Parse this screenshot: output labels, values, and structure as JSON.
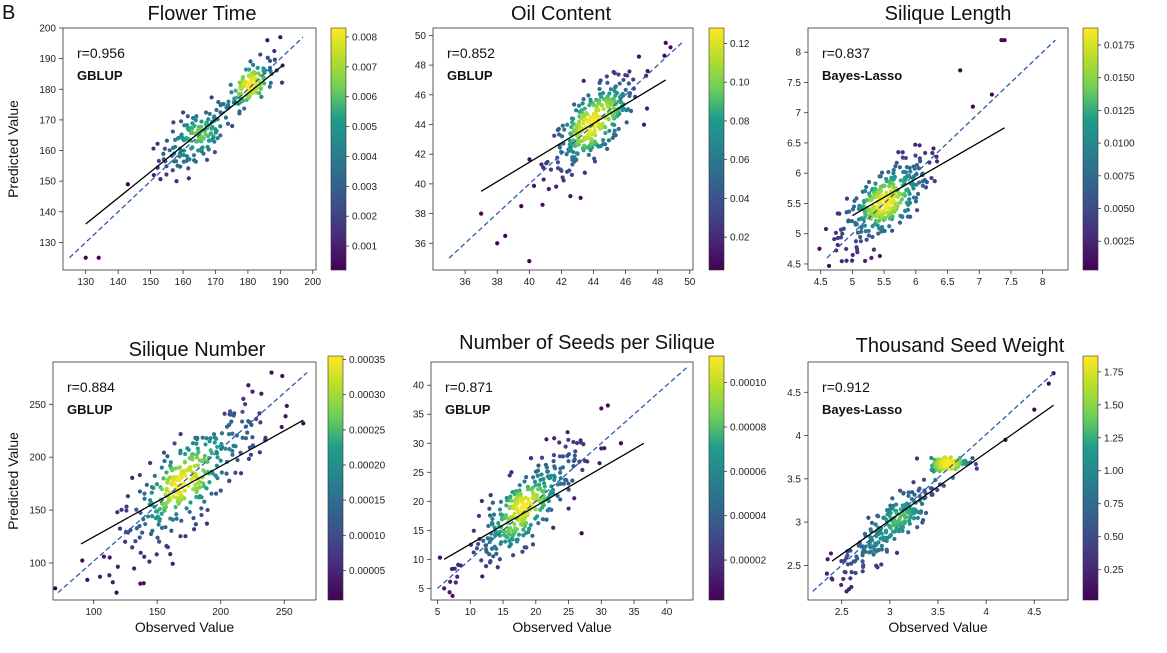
{
  "figure": {
    "panel_label": "B"
  },
  "colormap": [
    "#440154",
    "#482777",
    "#3f4a8a",
    "#31678e",
    "#26838f",
    "#1f9d8a",
    "#6cce5a",
    "#b6de2b",
    "#fee825"
  ],
  "fit_line_color": "#000000",
  "identity_line_color": "#2a5caa",
  "chart_data": [
    {
      "id": "flower-time",
      "type": "scatter",
      "title": "Flower Time",
      "xlabel": "",
      "ylabel": "Predicted Value",
      "r_label": "r=0.956",
      "model": "GBLUP",
      "xlim": [
        123,
        201
      ],
      "ylim": [
        121,
        200
      ],
      "xticks": [
        130,
        140,
        150,
        160,
        170,
        180,
        190,
        200
      ],
      "yticks": [
        130,
        140,
        150,
        160,
        170,
        180,
        190,
        200
      ],
      "identity_line": [
        [
          125,
          125
        ],
        [
          197,
          197
        ]
      ],
      "fit_line": [
        [
          130,
          136
        ],
        [
          191,
          188
        ]
      ],
      "clusters": [
        {
          "cx": 163.5,
          "cy": 163.5,
          "sx": 5.5,
          "sy": 5.5,
          "rho": 0.6,
          "n": 140
        },
        {
          "cx": 181,
          "cy": 182,
          "sx": 3.5,
          "sy": 4,
          "rho": 0.6,
          "n": 120
        }
      ],
      "outliers": [
        [
          130,
          125
        ],
        [
          134,
          125
        ],
        [
          143,
          149
        ],
        [
          151,
          152
        ],
        [
          190,
          197
        ],
        [
          186,
          196
        ],
        [
          174,
          174
        ],
        [
          158,
          150
        ]
      ],
      "colorbar": {
        "ticks": [
          0.001,
          0.002,
          0.003,
          0.004,
          0.005,
          0.006,
          0.007,
          0.008
        ],
        "tick_labels": [
          "0.001",
          "0.002",
          "0.003",
          "0.004",
          "0.005",
          "0.006",
          "0.007",
          "0.008"
        ],
        "range": [
          0.0002,
          0.0083
        ]
      }
    },
    {
      "id": "oil-content",
      "type": "scatter",
      "title": "Oil Content",
      "xlabel": "",
      "ylabel": "",
      "r_label": "r=0.852",
      "model": "GBLUP",
      "xlim": [
        34,
        50.2
      ],
      "ylim": [
        34.2,
        50.5
      ],
      "xticks": [
        36,
        38,
        40,
        42,
        44,
        46,
        48,
        50
      ],
      "yticks": [
        36,
        38,
        40,
        42,
        44,
        46,
        48,
        50
      ],
      "identity_line": [
        [
          35,
          35
        ],
        [
          49.5,
          49.5
        ]
      ],
      "fit_line": [
        [
          37,
          39.5
        ],
        [
          48.5,
          47
        ]
      ],
      "clusters": [
        {
          "cx": 44,
          "cy": 44,
          "sx": 1.4,
          "sy": 1.6,
          "rho": 0.75,
          "n": 320
        }
      ],
      "outliers": [
        [
          40,
          34.8
        ],
        [
          38,
          36
        ],
        [
          37,
          38
        ],
        [
          48.5,
          49.5
        ],
        [
          48.8,
          49.2
        ],
        [
          39.5,
          38.5
        ],
        [
          38.5,
          36.5
        ]
      ],
      "colorbar": {
        "ticks": [
          0.02,
          0.04,
          0.06,
          0.08,
          0.1,
          0.12
        ],
        "tick_labels": [
          "0.02",
          "0.04",
          "0.06",
          "0.08",
          "0.10",
          "0.12"
        ],
        "range": [
          0.003,
          0.128
        ]
      }
    },
    {
      "id": "silique-length",
      "type": "scatter",
      "title": "Silique Length",
      "xlabel": "",
      "ylabel": "",
      "r_label": "r=0.837",
      "model": "Bayes-Lasso",
      "xlim": [
        4.3,
        8.4
      ],
      "ylim": [
        4.4,
        8.4
      ],
      "xticks": [
        4.5,
        5.0,
        5.5,
        6.0,
        6.5,
        7.0,
        7.5,
        8.0
      ],
      "yticks": [
        4.5,
        5.0,
        5.5,
        6.0,
        6.5,
        7.0,
        7.5,
        8.0
      ],
      "identity_line": [
        [
          4.6,
          4.6
        ],
        [
          8.2,
          8.2
        ]
      ],
      "fit_line": [
        [
          5.0,
          5.3
        ],
        [
          7.4,
          6.75
        ]
      ],
      "clusters": [
        {
          "cx": 5.5,
          "cy": 5.5,
          "sx": 0.35,
          "sy": 0.4,
          "rho": 0.7,
          "n": 320
        }
      ],
      "outliers": [
        [
          7.35,
          8.2
        ],
        [
          7.4,
          8.2
        ],
        [
          6.7,
          7.7
        ],
        [
          5.3,
          4.6
        ],
        [
          5.2,
          4.55
        ],
        [
          6.9,
          7.1
        ],
        [
          7.2,
          7.3
        ]
      ],
      "colorbar": {
        "ticks": [
          0.0025,
          0.005,
          0.0075,
          0.01,
          0.0125,
          0.015,
          0.0175
        ],
        "tick_labels": [
          "0.0025",
          "0.0050",
          "0.0075",
          "0.0100",
          "0.0125",
          "0.0150",
          "0.0175"
        ],
        "range": [
          0.0003,
          0.0188
        ]
      }
    },
    {
      "id": "silique-number",
      "type": "scatter",
      "title": "Silique Number",
      "xlabel": "Observed Value",
      "ylabel": "Predicted Value",
      "r_label": "r=0.884",
      "model": "GBLUP",
      "xlim": [
        68,
        275
      ],
      "ylim": [
        65,
        290
      ],
      "xticks": [
        100,
        150,
        200,
        250
      ],
      "yticks": [
        100,
        150,
        200,
        250
      ],
      "identity_line": [
        [
          72,
          72
        ],
        [
          268,
          280
        ]
      ],
      "fit_line": [
        [
          90,
          118
        ],
        [
          265,
          235
        ]
      ],
      "clusters": [
        {
          "cx": 175,
          "cy": 178,
          "sx": 28,
          "sy": 35,
          "rho": 0.8,
          "n": 320
        }
      ],
      "outliers": [
        [
          240,
          280
        ],
        [
          225,
          262
        ],
        [
          232,
          260
        ],
        [
          118,
          72
        ],
        [
          95,
          84
        ],
        [
          105,
          87
        ],
        [
          265,
          232
        ]
      ],
      "colorbar": {
        "ticks": [
          5e-05,
          0.0001,
          0.00015,
          0.0002,
          0.00025,
          0.0003,
          0.00035
        ],
        "tick_labels": [
          "0.00005",
          "0.00010",
          "0.00015",
          "0.00020",
          "0.00025",
          "0.00030",
          "0.00035"
        ],
        "range": [
          8e-06,
          0.000355
        ]
      }
    },
    {
      "id": "seeds-per-silique",
      "type": "scatter",
      "title": "Number of Seeds per Silique",
      "xlabel": "Observed Value",
      "ylabel": "",
      "r_label": "r=0.871",
      "model": "GBLUP",
      "xlim": [
        4,
        44
      ],
      "ylim": [
        3,
        44
      ],
      "xticks": [
        5,
        10,
        15,
        20,
        25,
        30,
        35,
        40
      ],
      "yticks": [
        5,
        10,
        15,
        20,
        25,
        30,
        35,
        40
      ],
      "identity_line": [
        [
          5,
          5
        ],
        [
          43,
          43
        ]
      ],
      "fit_line": [
        [
          6,
          10
        ],
        [
          36.5,
          30
        ]
      ],
      "clusters": [
        {
          "cx": 18,
          "cy": 18.5,
          "sx": 4.2,
          "sy": 5,
          "rho": 0.8,
          "n": 320
        }
      ],
      "outliers": [
        [
          30,
          36
        ],
        [
          31,
          36.5
        ],
        [
          6,
          5
        ],
        [
          27,
          14.5
        ],
        [
          33,
          30
        ],
        [
          8,
          7
        ]
      ],
      "colorbar": {
        "ticks": [
          2e-05,
          4e-05,
          6e-05,
          8e-05,
          0.0001
        ],
        "tick_labels": [
          "0.00002",
          "0.00004",
          "0.00006",
          "0.00008",
          "0.00010"
        ],
        "range": [
          2e-06,
          0.000112
        ]
      }
    },
    {
      "id": "thousand-seed-weight",
      "type": "scatter",
      "title": "Thousand Seed Weight",
      "xlabel": "Observed Value",
      "ylabel": "",
      "r_label": "r=0.912",
      "model": "Bayes-Lasso",
      "xlim": [
        2.15,
        4.85
      ],
      "ylim": [
        2.1,
        4.85
      ],
      "xticks": [
        2.5,
        3.0,
        3.5,
        4.0,
        4.5
      ],
      "yticks": [
        2.5,
        3.0,
        3.5,
        4.0,
        4.5
      ],
      "identity_line": [
        [
          2.2,
          2.2
        ],
        [
          4.7,
          4.72
        ]
      ],
      "fit_line": [
        [
          2.4,
          2.55
        ],
        [
          4.7,
          4.35
        ]
      ],
      "clusters": [
        {
          "cx": 3.0,
          "cy": 2.95,
          "sx": 0.25,
          "sy": 0.28,
          "rho": 0.85,
          "n": 220
        },
        {
          "cx": 3.62,
          "cy": 3.68,
          "sx": 0.1,
          "sy": 0.04,
          "rho": 0.2,
          "n": 110
        }
      ],
      "outliers": [
        [
          4.65,
          4.6
        ],
        [
          4.7,
          4.72
        ],
        [
          2.6,
          2.25
        ],
        [
          2.55,
          2.2
        ],
        [
          4.2,
          3.95
        ],
        [
          4.5,
          4.3
        ]
      ],
      "colorbar": {
        "ticks": [
          0.25,
          0.5,
          0.75,
          1.0,
          1.25,
          1.5,
          1.75
        ],
        "tick_labels": [
          "0.25",
          "0.50",
          "0.75",
          "1.00",
          "1.25",
          "1.50",
          "1.75"
        ],
        "range": [
          0.02,
          1.87
        ]
      }
    }
  ]
}
